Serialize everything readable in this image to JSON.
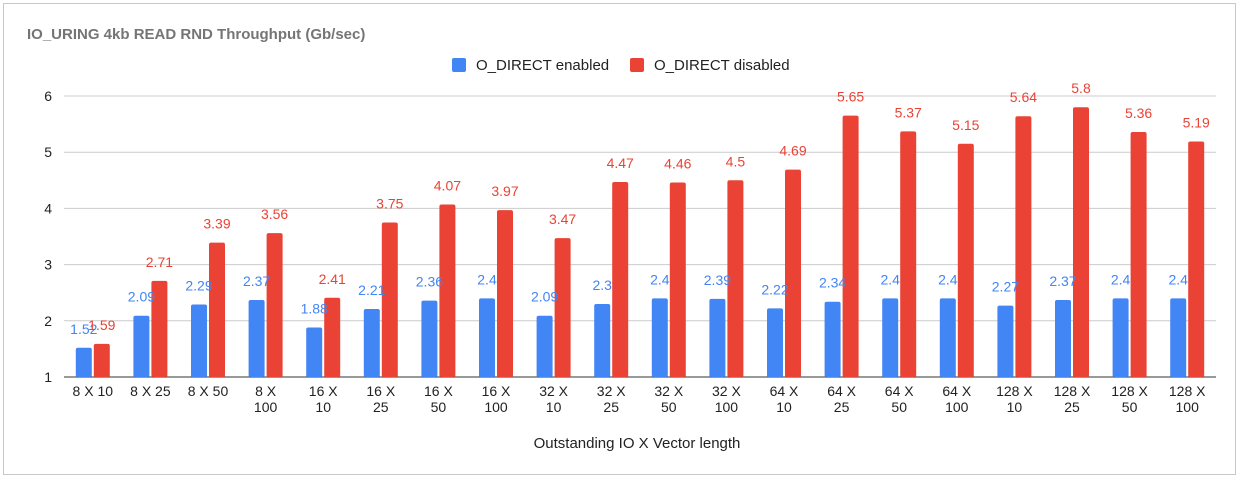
{
  "chart_data": {
    "type": "bar",
    "title": "IO_URING 4kb READ RND  Throughput (Gb/sec)",
    "xlabel": "Outstanding IO X Vector length",
    "ylabel": "",
    "ylim": [
      1,
      6
    ],
    "yticks": [
      "1",
      "2",
      "3",
      "4",
      "5",
      "6"
    ],
    "grid": true,
    "legend_position": "top",
    "categories": [
      [
        "8 X 10"
      ],
      [
        "8 X 25"
      ],
      [
        "8 X 50"
      ],
      [
        "8 X",
        "100"
      ],
      [
        "16 X",
        "10"
      ],
      [
        "16 X",
        "25"
      ],
      [
        "16 X",
        "50"
      ],
      [
        "16 X",
        "100"
      ],
      [
        "32 X",
        "10"
      ],
      [
        "32 X",
        "25"
      ],
      [
        "32 X",
        "50"
      ],
      [
        "32 X",
        "100"
      ],
      [
        "64 X",
        "10"
      ],
      [
        "64 X",
        "25"
      ],
      [
        "64 X",
        "50"
      ],
      [
        "64 X",
        "100"
      ],
      [
        "128 X",
        "10"
      ],
      [
        "128 X",
        "25"
      ],
      [
        "128 X",
        "50"
      ],
      [
        "128 X",
        "100"
      ]
    ],
    "series": [
      {
        "name": "O_DIRECT enabled",
        "color": "#4285f4",
        "values": [
          1.52,
          2.09,
          2.29,
          2.37,
          1.88,
          2.21,
          2.36,
          2.4,
          2.09,
          2.3,
          2.4,
          2.39,
          2.22,
          2.34,
          2.4,
          2.4,
          2.27,
          2.37,
          2.4,
          2.4
        ],
        "labels": [
          "1.52",
          "2.09",
          "2.29",
          "2.37",
          "1.88",
          "2.21",
          "2.36",
          "2.4",
          "2.09",
          "2.3",
          "2.4",
          "2.39",
          "2.22",
          "2.34",
          "2.4",
          "2.4",
          "2.27",
          "2.37",
          "2.4",
          "2.4"
        ]
      },
      {
        "name": "O_DIRECT disabled",
        "color": "#ea4335",
        "values": [
          1.59,
          2.71,
          3.39,
          3.56,
          2.41,
          3.75,
          4.07,
          3.97,
          3.47,
          4.47,
          4.46,
          4.5,
          4.69,
          5.65,
          5.37,
          5.15,
          5.64,
          5.8,
          5.36,
          5.19
        ],
        "labels": [
          "1.59",
          "2.71",
          "3.39",
          "3.56",
          "2.41",
          "3.75",
          "4.07",
          "3.97",
          "3.47",
          "4.47",
          "4.46",
          "4.5",
          "4.69",
          "5.65",
          "5.37",
          "5.15",
          "5.64",
          "5.8",
          "5.36",
          "5.19"
        ]
      }
    ]
  }
}
